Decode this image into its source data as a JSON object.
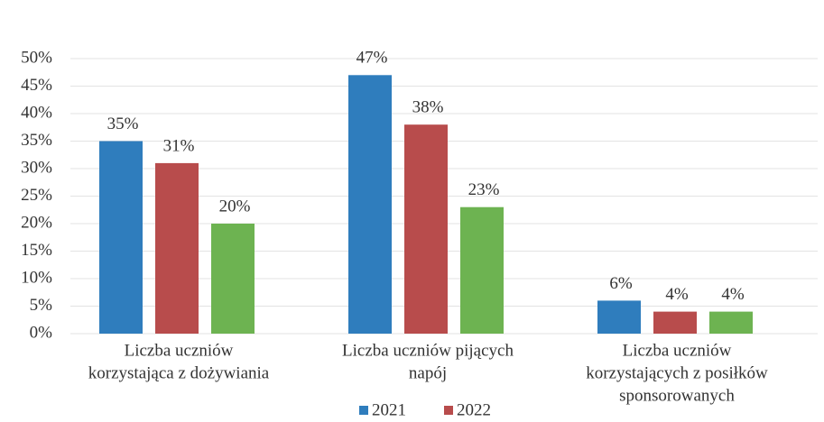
{
  "chart_data": {
    "type": "bar",
    "categories": [
      [
        "Liczba uczniów",
        "korzystająca z dożywiania"
      ],
      [
        "Liczba uczniów pijących",
        "napój"
      ],
      [
        "Liczba uczniów",
        "korzystających z posiłków",
        "sponsorowanych"
      ]
    ],
    "series": [
      {
        "name": "2021",
        "color": "#2f7dbd",
        "values": [
          35,
          47,
          6
        ],
        "value_labels": [
          "35%",
          "47%",
          "6%"
        ]
      },
      {
        "name": "2022",
        "color": "#b84c4c",
        "values": [
          31,
          38,
          4
        ],
        "value_labels": [
          "31%",
          "38%",
          "4%"
        ]
      },
      {
        "color": "#6db351",
        "values": [
          20,
          23,
          4
        ],
        "value_labels": [
          "20%",
          "23%",
          "4%"
        ]
      }
    ],
    "ylim": [
      0,
      50
    ],
    "yticks": [
      {
        "value": 0,
        "label": "0%"
      },
      {
        "value": 5,
        "label": "5%"
      },
      {
        "value": 10,
        "label": "10%"
      },
      {
        "value": 15,
        "label": "15%"
      },
      {
        "value": 20,
        "label": "20%"
      },
      {
        "value": 25,
        "label": "25%"
      },
      {
        "value": 30,
        "label": "30%"
      },
      {
        "value": 35,
        "label": "35%"
      },
      {
        "value": 40,
        "label": "40%"
      },
      {
        "value": 45,
        "label": "45%"
      },
      {
        "value": 50,
        "label": "50%"
      }
    ],
    "grid": true,
    "legend": "bottom"
  }
}
